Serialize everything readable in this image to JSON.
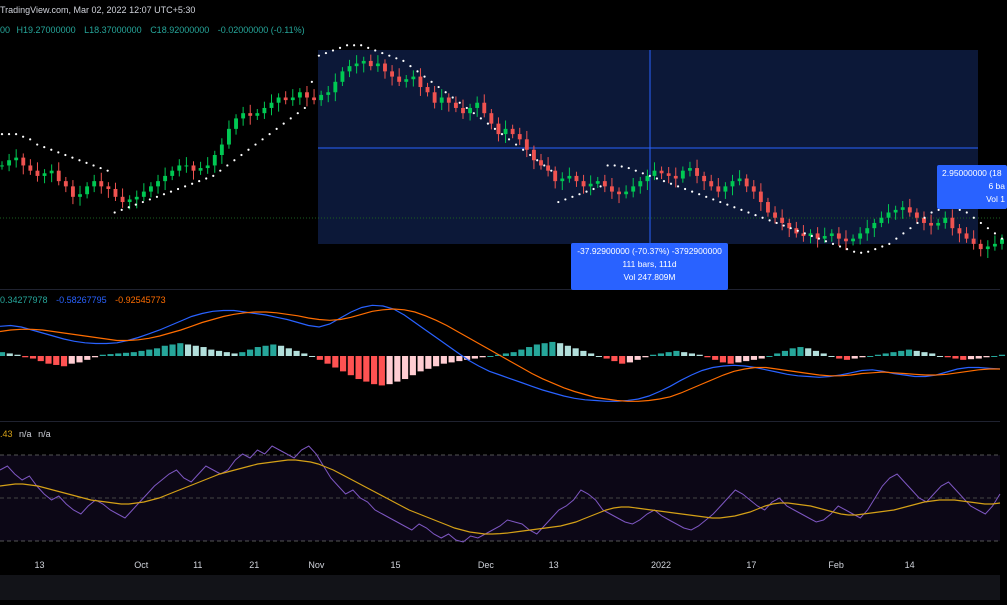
{
  "header": {
    "source": "TradingView.com, Mar 02, 2022 12:07 UTC+5:30",
    "ohlc_prefix": "00",
    "high": "H19.27000000",
    "low": "L18.37000000",
    "close": "C18.92000000",
    "change": "-0.02000000 (-0.11%)"
  },
  "macd_legend": {
    "histogram": "0.34277978",
    "macd": "-0.58267795",
    "signal": "-0.92545773"
  },
  "rsi_legend": {
    "value": ".43",
    "na1": "n/a",
    "na2": "n/a"
  },
  "measure_tooltip": {
    "line1": "-37.92900000 (-70.37%) -3792900000",
    "line2": "111 bars, 111d",
    "line3": "Vol 247.809M"
  },
  "right_tooltip": {
    "line1": "2.95000000 (18",
    "line2": "6 ba",
    "line3": "Vol 1"
  },
  "colors": {
    "background": "#000000",
    "up": "#26a69a",
    "up_candle": "#00c853",
    "down": "#ef5350",
    "sar": "#ffffff",
    "macd_line": "#2962ff",
    "signal_line": "#ff6d00",
    "hist_up": "#26a69a",
    "hist_up_light": "#b2dfdb",
    "hist_down": "#ff5252",
    "hist_down_light": "#ffcdd2",
    "rsi_line": "#7e57c2",
    "rsi_ma": "#d4a017",
    "measure_box": "#0d1b3e",
    "measure_line": "#2962ff",
    "tooltip": "#2962ff"
  },
  "chart_data": {
    "type": "candlestick",
    "x_tick_labels": [
      "13",
      "Oct",
      "11",
      "21",
      "Nov",
      "15",
      "Dec",
      "13",
      "2022",
      "17",
      "Feb",
      "14"
    ],
    "x_tick_dates": [
      "2021-09-13",
      "2021-10-01",
      "2021-10-11",
      "2021-10-21",
      "2021-11-01",
      "2021-11-15",
      "2021-12-01",
      "2021-12-13",
      "2022-01-01",
      "2022-01-17",
      "2022-02-01",
      "2022-02-14"
    ],
    "start_date": "2021-09-06",
    "end_date": "2022-03-02",
    "series_close": [
      34,
      35,
      35.5,
      34,
      33,
      32,
      32.5,
      33,
      31,
      30,
      28,
      28.5,
      30,
      31,
      30,
      29.5,
      28,
      27,
      27.5,
      28,
      29,
      30,
      31,
      32,
      33,
      34,
      34,
      33,
      33.5,
      34,
      36,
      38,
      41,
      43,
      44,
      43.5,
      44,
      45,
      46,
      47,
      46.5,
      47,
      48,
      47,
      46.5,
      47.5,
      48,
      50,
      52,
      53,
      53.5,
      54,
      53,
      53.5,
      52,
      51,
      50,
      50.5,
      51,
      49,
      48,
      46,
      47,
      46,
      45,
      44,
      45,
      46,
      44,
      42,
      40,
      41,
      40,
      39,
      37,
      35,
      34,
      33,
      31,
      31.5,
      32,
      31,
      30,
      30.5,
      31,
      30,
      29,
      28.5,
      29,
      30,
      31,
      32,
      33,
      32.5,
      32,
      31.5,
      33,
      33.5,
      32,
      31,
      30,
      29,
      30,
      31,
      31.5,
      30,
      29,
      27,
      25,
      24,
      23,
      22,
      21,
      20.5,
      21,
      20,
      20.5,
      21,
      20,
      19.5,
      20,
      21,
      22,
      23,
      24,
      25,
      25.5,
      26,
      25,
      24,
      23,
      22.5,
      23,
      24,
      22,
      21,
      20,
      19,
      18,
      18.5,
      19,
      20
    ],
    "sar_values": [
      40,
      40,
      40,
      39.5,
      39,
      38,
      37.5,
      37,
      36.5,
      36,
      35.5,
      35,
      34.5,
      34,
      33.5,
      33,
      25,
      25.5,
      26,
      26.5,
      27,
      27.5,
      28,
      28.5,
      29,
      29.5,
      30,
      30.5,
      31,
      31.5,
      32,
      33,
      34,
      35,
      36,
      37,
      38,
      39,
      40,
      41,
      42,
      43,
      44,
      45,
      50,
      55,
      55.5,
      56,
      56.5,
      57,
      57,
      57,
      56.5,
      56,
      55.5,
      55,
      54.5,
      54,
      53,
      52,
      51,
      50,
      49,
      48,
      47,
      46,
      45,
      44,
      43,
      42,
      41,
      40,
      39,
      38,
      37,
      36,
      35,
      34,
      33,
      27,
      27.5,
      28,
      28.5,
      29,
      29.5,
      30,
      34,
      34,
      33.8,
      33.5,
      33,
      32.5,
      32,
      31.5,
      31,
      30.5,
      30,
      29.5,
      29,
      28.5,
      28,
      27.5,
      27,
      26.5,
      26,
      25.5,
      25,
      24.5,
      24,
      23.5,
      23,
      22.5,
      22,
      21.5,
      21,
      20.5,
      20,
      19.5,
      19,
      18.5,
      18,
      17.5,
      17.3,
      17.5,
      18,
      18.5,
      19,
      20,
      21,
      22,
      23,
      24,
      25,
      25.5,
      26,
      26,
      25.5,
      25,
      24,
      23,
      22,
      21,
      20
    ],
    "macd_hist": [
      0.3,
      0.2,
      0.1,
      -0.1,
      -0.2,
      -0.4,
      -0.6,
      -0.7,
      -0.8,
      -0.6,
      -0.5,
      -0.3,
      -0.1,
      0.1,
      0.15,
      0.2,
      0.25,
      0.3,
      0.4,
      0.5,
      0.6,
      0.8,
      0.9,
      1.0,
      0.9,
      0.8,
      0.7,
      0.5,
      0.4,
      0.3,
      0.2,
      0.3,
      0.5,
      0.7,
      0.8,
      0.9,
      0.8,
      0.6,
      0.4,
      0.2,
      0.0,
      -0.3,
      -0.6,
      -0.9,
      -1.2,
      -1.5,
      -1.8,
      -2.0,
      -2.2,
      -2.3,
      -2.2,
      -2.0,
      -1.8,
      -1.5,
      -1.2,
      -1.0,
      -0.8,
      -0.6,
      -0.5,
      -0.4,
      -0.3,
      -0.2,
      -0.1,
      0.0,
      0.1,
      0.2,
      0.3,
      0.5,
      0.7,
      0.9,
      1.0,
      1.1,
      1.0,
      0.8,
      0.6,
      0.4,
      0.2,
      0.0,
      -0.2,
      -0.4,
      -0.6,
      -0.5,
      -0.3,
      -0.1,
      0.1,
      0.2,
      0.3,
      0.4,
      0.3,
      0.2,
      0.1,
      -0.1,
      -0.3,
      -0.5,
      -0.6,
      -0.5,
      -0.4,
      -0.3,
      -0.2,
      0.0,
      0.2,
      0.4,
      0.6,
      0.7,
      0.6,
      0.4,
      0.2,
      0.0,
      -0.2,
      -0.3,
      -0.2,
      -0.1,
      0.0,
      0.1,
      0.2,
      0.3,
      0.4,
      0.5,
      0.4,
      0.3,
      0.2,
      0.0,
      -0.1,
      -0.2,
      -0.3,
      -0.25,
      -0.2,
      -0.1,
      0.0,
      0.1
    ],
    "macd_line": [
      2.5,
      2.6,
      2.4,
      2.0,
      1.6,
      1.2,
      0.8,
      0.5,
      0.3,
      0.2,
      0.2,
      0.3,
      0.6,
      1.0,
      1.5,
      2.0,
      2.6,
      3.2,
      3.8,
      4.2,
      4.5,
      4.6,
      4.6,
      4.4,
      4.2,
      4.0,
      3.7,
      3.4,
      3.0,
      2.6,
      2.4,
      2.8,
      3.6,
      4.4,
      5.0,
      5.3,
      5.2,
      4.8,
      4.0,
      3.0,
      2.0,
      1.0,
      0.0,
      -1.0,
      -2.0,
      -2.8,
      -3.5,
      -4.0,
      -4.5,
      -5.0,
      -5.5,
      -6.0,
      -6.4,
      -6.8,
      -7.1,
      -7.3,
      -7.4,
      -7.5,
      -7.5,
      -7.4,
      -7.2,
      -6.8,
      -6.2,
      -5.5,
      -4.7,
      -4.0,
      -3.4,
      -3.0,
      -2.8,
      -2.7,
      -2.8,
      -3.0,
      -3.3,
      -3.6,
      -3.9,
      -4.1,
      -4.2,
      -4.3,
      -4.2,
      -4.0,
      -3.7,
      -3.4,
      -3.3,
      -3.5,
      -3.8,
      -4.0,
      -4.2,
      -4.2,
      -4.0,
      -3.6,
      -3.2,
      -3.0,
      -3.0,
      -3.1,
      -3.2
    ],
    "signal_line": [
      1.8,
      2.0,
      2.1,
      2.1,
      2.0,
      1.8,
      1.6,
      1.4,
      1.2,
      1.0,
      0.8,
      0.6,
      0.6,
      0.7,
      0.9,
      1.2,
      1.6,
      2.0,
      2.5,
      3.0,
      3.4,
      3.8,
      4.1,
      4.3,
      4.4,
      4.4,
      4.3,
      4.1,
      3.9,
      3.6,
      3.4,
      3.3,
      3.4,
      3.7,
      4.1,
      4.5,
      4.7,
      4.8,
      4.7,
      4.4,
      3.9,
      3.3,
      2.6,
      1.8,
      1.0,
      0.2,
      -0.6,
      -1.4,
      -2.2,
      -3.0,
      -3.8,
      -4.5,
      -5.1,
      -5.7,
      -6.2,
      -6.6,
      -7.0,
      -7.2,
      -7.4,
      -7.5,
      -7.5,
      -7.4,
      -7.2,
      -6.9,
      -6.4,
      -5.8,
      -5.2,
      -4.6,
      -4.0,
      -3.5,
      -3.2,
      -3.0,
      -3.0,
      -3.2,
      -3.4,
      -3.6,
      -3.8,
      -4.0,
      -4.1,
      -4.1,
      -4.0,
      -3.8,
      -3.7,
      -3.6,
      -3.7,
      -3.8,
      -3.9,
      -4.0,
      -4.0,
      -3.9,
      -3.7,
      -3.5,
      -3.3,
      -3.2,
      -3.2
    ],
    "rsi_line": [
      60,
      62,
      58,
      55,
      57,
      52,
      48,
      45,
      47,
      43,
      40,
      38,
      42,
      45,
      43,
      40,
      38,
      36,
      40,
      44,
      48,
      52,
      55,
      58,
      60,
      56,
      54,
      58,
      62,
      60,
      58,
      60,
      65,
      68,
      66,
      70,
      68,
      72,
      70,
      68,
      66,
      70,
      72,
      68,
      62,
      56,
      52,
      48,
      50,
      46,
      44,
      40,
      38,
      36,
      34,
      32,
      30,
      33,
      31,
      28,
      26,
      28,
      25,
      24,
      27,
      26,
      28,
      30,
      32,
      35,
      34,
      33,
      30,
      28,
      32,
      36,
      40,
      42,
      45,
      50,
      48,
      45,
      40,
      38,
      36,
      34,
      33,
      35,
      38,
      40,
      37,
      35,
      33,
      31,
      30,
      32,
      35,
      38,
      42,
      46,
      50,
      48,
      45,
      42,
      40,
      44,
      46,
      42,
      40,
      38,
      36,
      34,
      35,
      38,
      42,
      40,
      38,
      36,
      40,
      46,
      52,
      56,
      58,
      54,
      50,
      46,
      44,
      48,
      52,
      54,
      50,
      46,
      42,
      40,
      38,
      42,
      48
    ],
    "rsi_ma": [
      52,
      52.5,
      53,
      53,
      52.5,
      52,
      51,
      50,
      49,
      48,
      47,
      46,
      45,
      44.5,
      44,
      43.5,
      43,
      43,
      43.5,
      44,
      45,
      46,
      47.5,
      49,
      50.5,
      52,
      53.5,
      55,
      56.5,
      58,
      59,
      60,
      61,
      62,
      63,
      63.5,
      64,
      64.5,
      65,
      65,
      64.5,
      64,
      63,
      61.5,
      60,
      58,
      56,
      54,
      52,
      50,
      48,
      46,
      44,
      42,
      40,
      38.5,
      37,
      35.5,
      34,
      32.5,
      31,
      30,
      29,
      28.5,
      28,
      28,
      28.2,
      28.5,
      29,
      29.5,
      30,
      30.5,
      31,
      31.5,
      32,
      33,
      34,
      35.5,
      37,
      38.5,
      40,
      41,
      41.5,
      41.5,
      41,
      40.5,
      40,
      39.5,
      39,
      38.5,
      38,
      37.5,
      37,
      36.5,
      36,
      36,
      36.5,
      37,
      38,
      39,
      40.5,
      42,
      43,
      43.5,
      43.5,
      43,
      42.5,
      42,
      41,
      40,
      39,
      38,
      37.5,
      37.5,
      38,
      38.5,
      39,
      39.5,
      40,
      41,
      42,
      43,
      44,
      44.5,
      45,
      45,
      45,
      44.5,
      44,
      43.5,
      43,
      43,
      43.5
    ]
  }
}
